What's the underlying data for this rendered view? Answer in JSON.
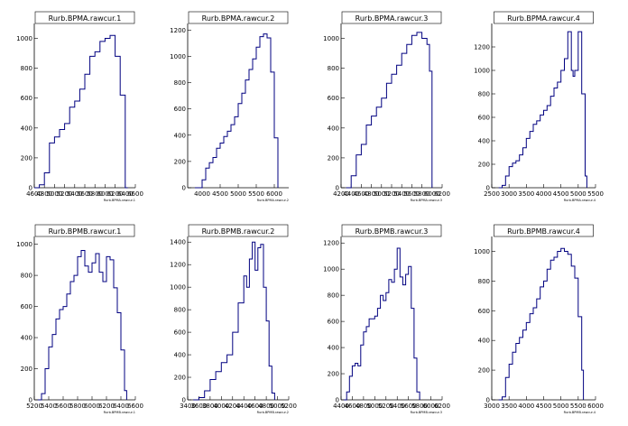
{
  "chart_data": [
    {
      "type": "histogram",
      "title": "Rurb.BPMA.rawcur.1",
      "xlabel": "Rurb.BPMA.rawcur.1",
      "x_range": [
        4600,
        6600
      ],
      "x_ticks": [
        "4600",
        "4800",
        "5000",
        "5200",
        "5400",
        "5600",
        "5800",
        "6000",
        "6200",
        "6400",
        "6600"
      ],
      "y_range": [
        0,
        1100
      ],
      "y_ticks": [
        0,
        200,
        400,
        600,
        800,
        1000
      ],
      "points": [
        [
          4600,
          0
        ],
        [
          4700,
          20
        ],
        [
          4800,
          100
        ],
        [
          4900,
          300
        ],
        [
          5000,
          340
        ],
        [
          5100,
          390
        ],
        [
          5200,
          430
        ],
        [
          5300,
          540
        ],
        [
          5400,
          580
        ],
        [
          5500,
          660
        ],
        [
          5600,
          760
        ],
        [
          5700,
          880
        ],
        [
          5800,
          910
        ],
        [
          5900,
          980
        ],
        [
          6000,
          1000
        ],
        [
          6100,
          1020
        ],
        [
          6200,
          880
        ],
        [
          6300,
          620
        ],
        [
          6400,
          0
        ],
        [
          6450,
          0
        ]
      ],
      "line_color": "#000080"
    },
    {
      "type": "histogram",
      "title": "Rurb.BPMA.rawcur.2",
      "xlabel": "Rurb.BPMA.rawcur.2",
      "x_range": [
        3600,
        6400
      ],
      "x_ticks": [
        "4000",
        "4500",
        "5000",
        "5500",
        "6000"
      ],
      "y_range": [
        0,
        1250
      ],
      "y_ticks": [
        0,
        200,
        400,
        600,
        800,
        1000,
        1200
      ],
      "points": [
        [
          3800,
          0
        ],
        [
          3950,
          0
        ],
        [
          4000,
          60
        ],
        [
          4100,
          150
        ],
        [
          4200,
          190
        ],
        [
          4300,
          230
        ],
        [
          4400,
          300
        ],
        [
          4500,
          340
        ],
        [
          4600,
          390
        ],
        [
          4700,
          430
        ],
        [
          4800,
          480
        ],
        [
          4900,
          540
        ],
        [
          5000,
          640
        ],
        [
          5100,
          720
        ],
        [
          5200,
          820
        ],
        [
          5300,
          900
        ],
        [
          5400,
          980
        ],
        [
          5500,
          1070
        ],
        [
          5600,
          1150
        ],
        [
          5700,
          1170
        ],
        [
          5800,
          1140
        ],
        [
          5900,
          880
        ],
        [
          6000,
          380
        ],
        [
          6100,
          0
        ]
      ],
      "line_color": "#000080"
    },
    {
      "type": "histogram",
      "title": "Rurb.BPMA.rawcur.3",
      "xlabel": "Rurb.BPMA.rawcur.3",
      "x_range": [
        4200,
        6200
      ],
      "x_ticks": [
        "4200",
        "4400",
        "4600",
        "4800",
        "5000",
        "5200",
        "5400",
        "5600",
        "5800",
        "6000",
        "6200"
      ],
      "y_range": [
        0,
        1100
      ],
      "y_ticks": [
        0,
        200,
        400,
        600,
        800,
        1000
      ],
      "points": [
        [
          4300,
          0
        ],
        [
          4400,
          80
        ],
        [
          4500,
          220
        ],
        [
          4600,
          290
        ],
        [
          4700,
          420
        ],
        [
          4800,
          480
        ],
        [
          4900,
          540
        ],
        [
          5000,
          600
        ],
        [
          5100,
          700
        ],
        [
          5200,
          760
        ],
        [
          5300,
          820
        ],
        [
          5400,
          900
        ],
        [
          5500,
          960
        ],
        [
          5600,
          1020
        ],
        [
          5700,
          1040
        ],
        [
          5800,
          1000
        ],
        [
          5900,
          960
        ],
        [
          5950,
          780
        ],
        [
          6000,
          0
        ]
      ],
      "line_color": "#000080"
    },
    {
      "type": "histogram",
      "title": "Rurb.BPMA.rawcur.4",
      "xlabel": "Rurb.BPMA.rawcur.4",
      "x_range": [
        2500,
        5500
      ],
      "x_ticks": [
        "2500",
        "3000",
        "3500",
        "4000",
        "4500",
        "5000",
        "5500"
      ],
      "y_range": [
        0,
        1400
      ],
      "y_ticks": [
        0,
        200,
        400,
        600,
        800,
        1000,
        1200
      ],
      "points": [
        [
          2700,
          0
        ],
        [
          2800,
          20
        ],
        [
          2900,
          100
        ],
        [
          3000,
          180
        ],
        [
          3100,
          210
        ],
        [
          3200,
          230
        ],
        [
          3300,
          280
        ],
        [
          3400,
          340
        ],
        [
          3500,
          420
        ],
        [
          3600,
          480
        ],
        [
          3700,
          540
        ],
        [
          3800,
          570
        ],
        [
          3900,
          620
        ],
        [
          4000,
          660
        ],
        [
          4100,
          700
        ],
        [
          4200,
          780
        ],
        [
          4300,
          850
        ],
        [
          4400,
          900
        ],
        [
          4500,
          1000
        ],
        [
          4600,
          1100
        ],
        [
          4700,
          1330
        ],
        [
          4800,
          1000
        ],
        [
          4850,
          950
        ],
        [
          4900,
          1000
        ],
        [
          5000,
          1330
        ],
        [
          5100,
          800
        ],
        [
          5200,
          100
        ],
        [
          5250,
          0
        ]
      ],
      "line_color": "#000080"
    },
    {
      "type": "histogram",
      "title": "Rurb.BPMB.rawcur.1",
      "xlabel": "Rurb.BPMB.rawcur.1",
      "x_range": [
        5200,
        6600
      ],
      "x_ticks": [
        "5200",
        "5400",
        "5600",
        "5800",
        "6000",
        "6200",
        "6400",
        "6600"
      ],
      "y_range": [
        0,
        1050
      ],
      "y_ticks": [
        0,
        200,
        400,
        600,
        800,
        1000
      ],
      "points": [
        [
          5250,
          0
        ],
        [
          5300,
          40
        ],
        [
          5350,
          200
        ],
        [
          5400,
          340
        ],
        [
          5450,
          420
        ],
        [
          5500,
          520
        ],
        [
          5550,
          580
        ],
        [
          5600,
          600
        ],
        [
          5650,
          680
        ],
        [
          5700,
          760
        ],
        [
          5750,
          800
        ],
        [
          5800,
          920
        ],
        [
          5850,
          960
        ],
        [
          5900,
          860
        ],
        [
          5950,
          820
        ],
        [
          6000,
          880
        ],
        [
          6050,
          940
        ],
        [
          6100,
          820
        ],
        [
          6150,
          760
        ],
        [
          6200,
          920
        ],
        [
          6250,
          900
        ],
        [
          6300,
          720
        ],
        [
          6350,
          560
        ],
        [
          6400,
          320
        ],
        [
          6450,
          60
        ],
        [
          6480,
          0
        ]
      ],
      "line_color": "#000080"
    },
    {
      "type": "histogram",
      "title": "Rurb.BPMB.rawcur.2",
      "xlabel": "Rurb.BPMB.rawcur.2",
      "x_range": [
        3400,
        5200
      ],
      "x_ticks": [
        "3400",
        "3600",
        "3800",
        "4000",
        "4200",
        "4400",
        "4600",
        "4800",
        "5000",
        "5200"
      ],
      "y_range": [
        0,
        1450
      ],
      "y_ticks": [
        0,
        200,
        400,
        600,
        800,
        1000,
        1200,
        1400
      ],
      "points": [
        [
          3500,
          0
        ],
        [
          3600,
          20
        ],
        [
          3700,
          80
        ],
        [
          3800,
          180
        ],
        [
          3900,
          250
        ],
        [
          4000,
          330
        ],
        [
          4100,
          400
        ],
        [
          4200,
          600
        ],
        [
          4300,
          860
        ],
        [
          4400,
          1100
        ],
        [
          4450,
          1000
        ],
        [
          4500,
          1250
        ],
        [
          4550,
          1400
        ],
        [
          4600,
          1150
        ],
        [
          4650,
          1350
        ],
        [
          4700,
          1380
        ],
        [
          4750,
          1000
        ],
        [
          4800,
          700
        ],
        [
          4850,
          300
        ],
        [
          4900,
          60
        ],
        [
          4950,
          0
        ]
      ],
      "line_color": "#000080"
    },
    {
      "type": "histogram",
      "title": "Rurb.BPMB.rawcur.3",
      "xlabel": "Rurb.BPMB.rawcur.3",
      "x_range": [
        4400,
        6200
      ],
      "x_ticks": [
        "4400",
        "4600",
        "4800",
        "5000",
        "5200",
        "5400",
        "5600",
        "5800",
        "6000",
        "6200"
      ],
      "y_range": [
        0,
        1250
      ],
      "y_ticks": [
        0,
        200,
        400,
        600,
        800,
        1000,
        1200
      ],
      "points": [
        [
          4450,
          0
        ],
        [
          4500,
          60
        ],
        [
          4550,
          180
        ],
        [
          4600,
          260
        ],
        [
          4650,
          280
        ],
        [
          4700,
          260
        ],
        [
          4750,
          420
        ],
        [
          4800,
          520
        ],
        [
          4850,
          560
        ],
        [
          4900,
          620
        ],
        [
          4950,
          620
        ],
        [
          5000,
          640
        ],
        [
          5050,
          700
        ],
        [
          5100,
          800
        ],
        [
          5150,
          760
        ],
        [
          5200,
          820
        ],
        [
          5250,
          920
        ],
        [
          5300,
          900
        ],
        [
          5350,
          1000
        ],
        [
          5400,
          1160
        ],
        [
          5450,
          940
        ],
        [
          5500,
          880
        ],
        [
          5550,
          960
        ],
        [
          5600,
          1020
        ],
        [
          5650,
          700
        ],
        [
          5700,
          320
        ],
        [
          5750,
          60
        ],
        [
          5800,
          0
        ]
      ],
      "line_color": "#000080"
    },
    {
      "type": "histogram",
      "title": "Rurb.BPMB.rawcur.4",
      "xlabel": "Rurb.BPMB.rawcur.4",
      "x_range": [
        3000,
        6000
      ],
      "x_ticks": [
        "3000",
        "3500",
        "4000",
        "4500",
        "5000",
        "5500",
        "6000"
      ],
      "y_range": [
        0,
        1100
      ],
      "y_ticks": [
        0,
        200,
        400,
        600,
        800,
        1000
      ],
      "points": [
        [
          3200,
          0
        ],
        [
          3300,
          20
        ],
        [
          3400,
          150
        ],
        [
          3500,
          240
        ],
        [
          3600,
          320
        ],
        [
          3700,
          380
        ],
        [
          3800,
          420
        ],
        [
          3900,
          470
        ],
        [
          4000,
          520
        ],
        [
          4100,
          580
        ],
        [
          4200,
          620
        ],
        [
          4300,
          680
        ],
        [
          4400,
          760
        ],
        [
          4500,
          800
        ],
        [
          4600,
          880
        ],
        [
          4700,
          940
        ],
        [
          4800,
          960
        ],
        [
          4900,
          1000
        ],
        [
          5000,
          1020
        ],
        [
          5100,
          1000
        ],
        [
          5200,
          980
        ],
        [
          5300,
          900
        ],
        [
          5400,
          820
        ],
        [
          5500,
          560
        ],
        [
          5600,
          200
        ],
        [
          5650,
          0
        ]
      ],
      "line_color": "#000080"
    }
  ]
}
